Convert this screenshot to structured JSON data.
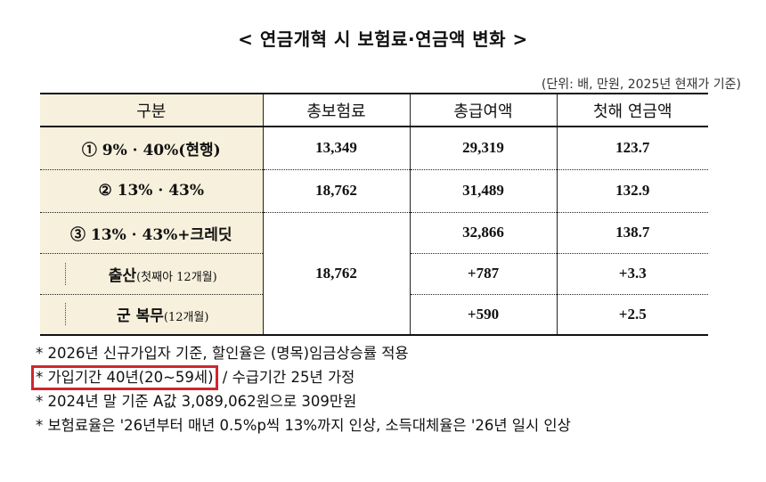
{
  "title": "< 연금개혁 시 보험료·연금액 변화 >",
  "unit_note": "(단위: 배, 만원, 2025년 현재가 기준)",
  "table": {
    "headers": [
      "구분",
      "총보험료",
      "총급여액",
      "첫해 연금액"
    ],
    "rows": [
      {
        "label": "① 9% · 40%(현행)",
        "premium": "13,349",
        "benefit": "29,319",
        "first_year": "123.7"
      },
      {
        "label": "② 13% · 43%",
        "premium": "18,762",
        "benefit": "31,489",
        "first_year": "132.9"
      },
      {
        "label": "③ 13% · 43%+크레딧",
        "premium": "18,762",
        "benefit": "32,866",
        "first_year": "138.7"
      }
    ],
    "subrows": [
      {
        "label_main": "출산",
        "label_note": "(첫째아 12개월)",
        "benefit": "+787",
        "first_year": "+3.3"
      },
      {
        "label_main": "군 복무",
        "label_note": "(12개월)",
        "benefit": "+590",
        "first_year": "+2.5"
      }
    ]
  },
  "notes": {
    "n1": "* 2026년 신규가입자 기준, 할인율은 (명목)임금상승률 적용",
    "n2_highlight": "* 가입기간 40년(20~59세)",
    "n2_rest": "/ 수급기간 25년 가정",
    "n3": "* 2024년 말 기준 A값 3,089,062원으로 309만원",
    "n4": "* 보험료율은 '26년부터 매년 0.5%p씩 13%까지 인상, 소득대체율은 '26년 일시 인상"
  },
  "colors": {
    "header_bg": "#f7f0dc",
    "highlight_border": "#d0262e"
  }
}
